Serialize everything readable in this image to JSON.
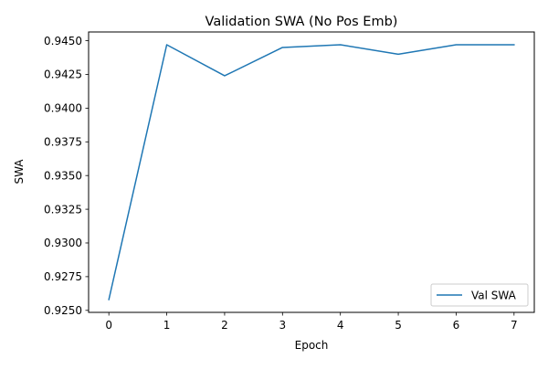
{
  "chart_data": {
    "type": "line",
    "title": "Validation SWA (No Pos Emb)",
    "xlabel": "Epoch",
    "ylabel": "SWA",
    "x": [
      0,
      1,
      2,
      3,
      4,
      5,
      6,
      7
    ],
    "series": [
      {
        "name": "Val SWA",
        "color": "#1f77b4",
        "values": [
          0.9258,
          0.9447,
          0.9424,
          0.9445,
          0.9447,
          0.944,
          0.9447,
          0.9447
        ]
      }
    ],
    "xlim": [
      -0.35,
      7.35
    ],
    "ylim": [
      0.92485,
      0.94565
    ],
    "xticks": [
      0,
      1,
      2,
      3,
      4,
      5,
      6,
      7
    ],
    "xtick_labels": [
      "0",
      "1",
      "2",
      "3",
      "4",
      "5",
      "6",
      "7"
    ],
    "yticks": [
      0.925,
      0.9275,
      0.93,
      0.9325,
      0.935,
      0.9375,
      0.94,
      0.9425,
      0.945
    ],
    "ytick_labels": [
      "0.9250",
      "0.9275",
      "0.9300",
      "0.9325",
      "0.9350",
      "0.9375",
      "0.9400",
      "0.9425",
      "0.9450"
    ],
    "grid": false,
    "legend_position": "lower right"
  }
}
